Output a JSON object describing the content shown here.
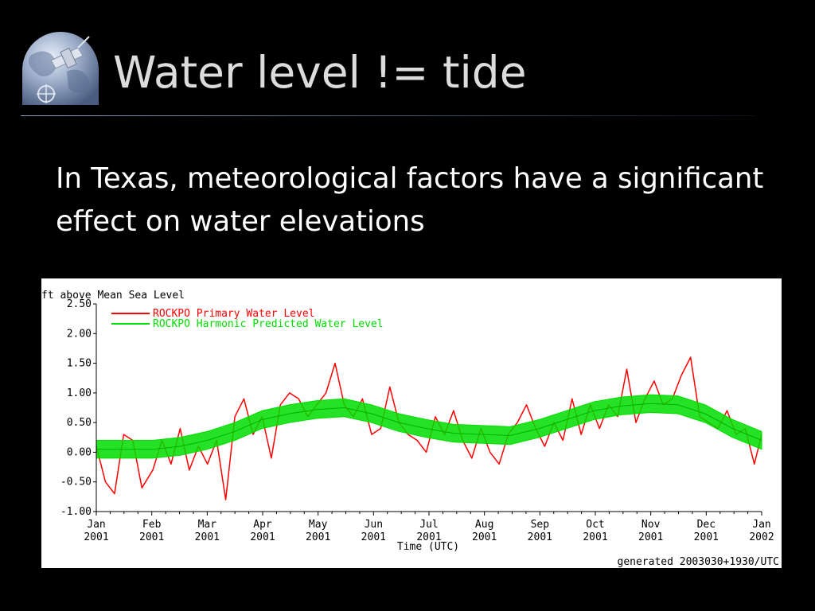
{
  "slide": {
    "title": "Water level != tide",
    "body_text": "In Texas, meteorological factors have a significant effect on water elevations"
  },
  "colors": {
    "background": "#000000",
    "title": "#dcdcdc",
    "body_text": "#ffffff",
    "primary_series": "#ff0000",
    "predicted_series": "#00dd00"
  },
  "icons": [
    "globe-logo-icon"
  ],
  "chart_data": {
    "type": "line",
    "title": "",
    "ylabel": "ft above Mean Sea Level",
    "xlabel": "Time (UTC)",
    "footer": "generated 2003030+1930/UTC",
    "ylim": [
      -1.0,
      2.5
    ],
    "y_ticks": [
      "2.50",
      "2.00",
      "1.50",
      "1.00",
      "0.50",
      "0.00",
      "-0.50",
      "-1.00"
    ],
    "x_ticks": [
      {
        "month": "Jan",
        "year": "2001"
      },
      {
        "month": "Feb",
        "year": "2001"
      },
      {
        "month": "Mar",
        "year": "2001"
      },
      {
        "month": "Apr",
        "year": "2001"
      },
      {
        "month": "May",
        "year": "2001"
      },
      {
        "month": "Jun",
        "year": "2001"
      },
      {
        "month": "Jul",
        "year": "2001"
      },
      {
        "month": "Aug",
        "year": "2001"
      },
      {
        "month": "Sep",
        "year": "2001"
      },
      {
        "month": "Oct",
        "year": "2001"
      },
      {
        "month": "Nov",
        "year": "2001"
      },
      {
        "month": "Dec",
        "year": "2001"
      },
      {
        "month": "Jan",
        "year": "2002"
      }
    ],
    "legend_position": "top-left",
    "grid": false,
    "series": [
      {
        "name": "ROCKPO Primary Water Level",
        "color": "#ff0000",
        "x": [
          "2001-01-01",
          "2001-01-06",
          "2001-01-11",
          "2001-01-16",
          "2001-01-21",
          "2001-01-26",
          "2001-02-01",
          "2001-02-06",
          "2001-02-11",
          "2001-02-16",
          "2001-02-21",
          "2001-02-26",
          "2001-03-03",
          "2001-03-08",
          "2001-03-13",
          "2001-03-18",
          "2001-03-23",
          "2001-03-28",
          "2001-04-02",
          "2001-04-07",
          "2001-04-12",
          "2001-04-17",
          "2001-04-22",
          "2001-04-27",
          "2001-05-02",
          "2001-05-07",
          "2001-05-12",
          "2001-05-17",
          "2001-05-22",
          "2001-05-27",
          "2001-06-01",
          "2001-06-06",
          "2001-06-11",
          "2001-06-16",
          "2001-06-21",
          "2001-06-26",
          "2001-07-01",
          "2001-07-06",
          "2001-07-11",
          "2001-07-16",
          "2001-07-21",
          "2001-07-26",
          "2001-07-31",
          "2001-08-05",
          "2001-08-10",
          "2001-08-15",
          "2001-08-20",
          "2001-08-25",
          "2001-08-30",
          "2001-09-04",
          "2001-09-09",
          "2001-09-14",
          "2001-09-19",
          "2001-09-24",
          "2001-09-29",
          "2001-10-04",
          "2001-10-09",
          "2001-10-14",
          "2001-10-19",
          "2001-10-24",
          "2001-10-29",
          "2001-11-03",
          "2001-11-08",
          "2001-11-13",
          "2001-11-18",
          "2001-11-23",
          "2001-11-28",
          "2001-12-03",
          "2001-12-08",
          "2001-12-13",
          "2001-12-18",
          "2001-12-23",
          "2001-12-28",
          "2002-01-01"
        ],
        "values": [
          0.1,
          -0.5,
          -0.7,
          0.3,
          0.2,
          -0.6,
          -0.3,
          0.2,
          -0.2,
          0.4,
          -0.3,
          0.1,
          -0.2,
          0.2,
          -0.8,
          0.6,
          0.9,
          0.3,
          0.6,
          -0.1,
          0.8,
          1.0,
          0.9,
          0.6,
          0.8,
          1.0,
          1.5,
          0.8,
          0.6,
          0.9,
          0.3,
          0.4,
          1.1,
          0.5,
          0.3,
          0.2,
          0.0,
          0.6,
          0.3,
          0.7,
          0.2,
          -0.1,
          0.4,
          0.0,
          -0.2,
          0.3,
          0.5,
          0.8,
          0.4,
          0.1,
          0.5,
          0.2,
          0.9,
          0.3,
          0.8,
          0.4,
          0.8,
          0.6,
          1.4,
          0.5,
          0.9,
          1.2,
          0.8,
          0.9,
          1.3,
          1.6,
          0.6,
          0.5,
          0.4,
          0.7,
          0.3,
          0.4,
          -0.2,
          0.3
        ]
      },
      {
        "name": "ROCKPO Harmonic Predicted Water Level",
        "color": "#00dd00",
        "x": [
          "2001-01-01",
          "2001-01-16",
          "2001-02-01",
          "2001-02-16",
          "2001-03-03",
          "2001-03-18",
          "2001-04-02",
          "2001-04-17",
          "2001-05-02",
          "2001-05-17",
          "2001-06-01",
          "2001-06-16",
          "2001-07-01",
          "2001-07-16",
          "2001-08-01",
          "2001-08-16",
          "2001-09-01",
          "2001-09-16",
          "2001-10-01",
          "2001-10-16",
          "2001-11-01",
          "2001-11-16",
          "2001-12-01",
          "2001-12-16",
          "2002-01-01"
        ],
        "values": [
          0.05,
          0.05,
          0.05,
          0.1,
          0.2,
          0.35,
          0.55,
          0.65,
          0.72,
          0.75,
          0.65,
          0.5,
          0.4,
          0.32,
          0.3,
          0.28,
          0.4,
          0.55,
          0.7,
          0.78,
          0.82,
          0.8,
          0.65,
          0.4,
          0.2
        ],
        "amplitude": 0.15
      }
    ]
  }
}
